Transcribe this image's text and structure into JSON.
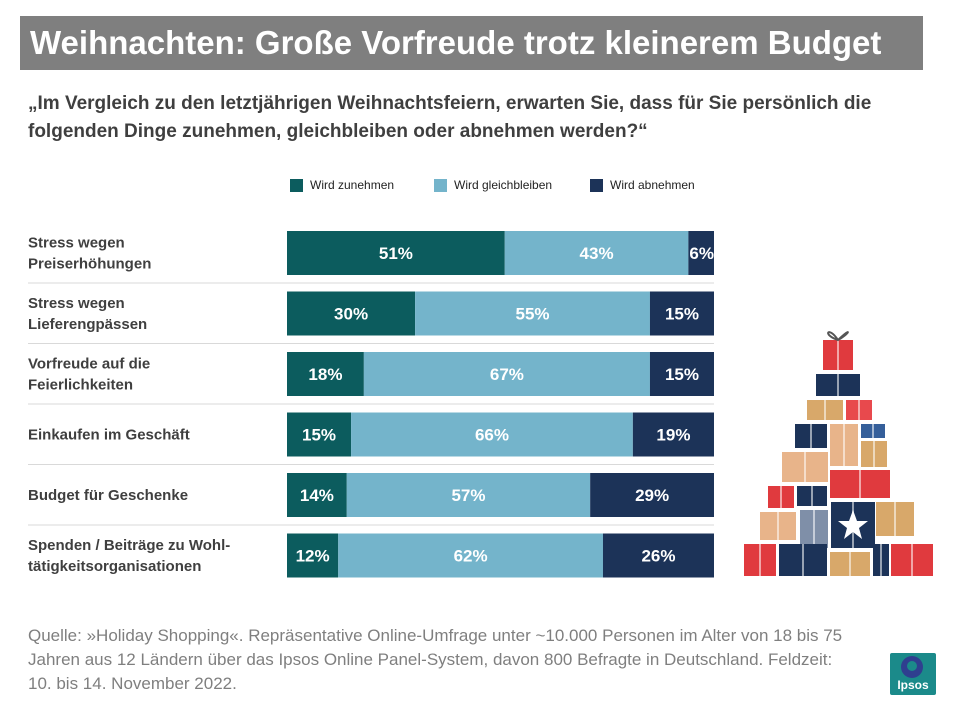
{
  "title": "Weihnachten: Große Vorfreude trotz kleinerem Budget",
  "question": "„Im Vergleich zu den letztjährigen Weihnachtsfeiern, erwarten Sie, dass für Sie persönlich die folgenden Dinge zunehmen, gleichbleiben oder abnehmen werden?“",
  "legend": [
    {
      "label": "Wird zunehmen",
      "color": "#0c5c5e"
    },
    {
      "label": "Wird gleichbleiben",
      "color": "#74b4cb"
    },
    {
      "label": "Wird abnehmen",
      "color": "#1c3358"
    }
  ],
  "chart_data": {
    "type": "bar",
    "orientation": "horizontal",
    "stacked": true,
    "unit": "%",
    "categories": [
      [
        "Stress wegen",
        "Preiserhöhungen"
      ],
      [
        "Stress wegen",
        "Lieferengpässen"
      ],
      [
        "Vorfreude auf die",
        "Feierlichkeiten"
      ],
      [
        "Einkaufen im Geschäft"
      ],
      [
        "Budget für Geschenke"
      ],
      [
        "Spenden / Beiträge zu Wohl-",
        "tätigkeitsorganisationen"
      ]
    ],
    "series": [
      {
        "name": "Wird zunehmen",
        "color": "#0c5c5e",
        "values": [
          51,
          30,
          18,
          15,
          14,
          12
        ]
      },
      {
        "name": "Wird gleichbleiben",
        "color": "#74b4cb",
        "values": [
          43,
          55,
          67,
          66,
          57,
          62
        ]
      },
      {
        "name": "Wird abnehmen",
        "color": "#1c3358",
        "values": [
          6,
          15,
          15,
          19,
          29,
          26
        ]
      }
    ],
    "xlim": [
      0,
      100
    ]
  },
  "source": "Quelle: »Holiday Shopping«. Repräsentative Online-Umfrage unter ~10.000 Personen im Alter von 18 bis 75 Jahren aus 12 Ländern über das Ipsos Online Panel-System, davon 800 Befragte in Deutschland. Feldzeit: 10. bis 14. November 2022.",
  "logo": {
    "text": "Ipsos",
    "color": "#1b8a8a"
  }
}
